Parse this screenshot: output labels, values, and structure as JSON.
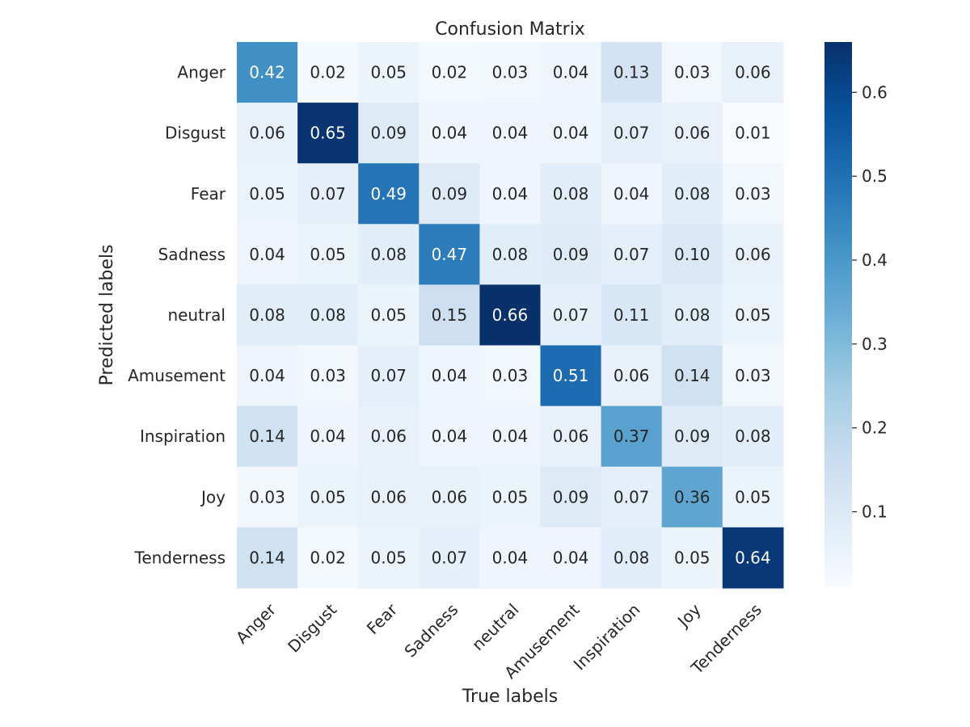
{
  "chart_data": {
    "type": "heatmap",
    "title": "Confusion Matrix",
    "xlabel": "True labels",
    "ylabel": "Predicted labels",
    "x_categories": [
      "Anger",
      "Disgust",
      "Fear",
      "Sadness",
      "neutral",
      "Amusement",
      "Inspiration",
      "Joy",
      "Tenderness"
    ],
    "y_categories": [
      "Anger",
      "Disgust",
      "Fear",
      "Sadness",
      "neutral",
      "Amusement",
      "Inspiration",
      "Joy",
      "Tenderness"
    ],
    "values": [
      [
        0.42,
        0.02,
        0.05,
        0.02,
        0.03,
        0.04,
        0.13,
        0.03,
        0.06
      ],
      [
        0.06,
        0.65,
        0.09,
        0.04,
        0.04,
        0.04,
        0.07,
        0.06,
        0.01
      ],
      [
        0.05,
        0.07,
        0.49,
        0.09,
        0.04,
        0.08,
        0.04,
        0.08,
        0.03
      ],
      [
        0.04,
        0.05,
        0.08,
        0.47,
        0.08,
        0.09,
        0.07,
        0.1,
        0.06
      ],
      [
        0.08,
        0.08,
        0.05,
        0.15,
        0.66,
        0.07,
        0.11,
        0.08,
        0.05
      ],
      [
        0.04,
        0.03,
        0.07,
        0.04,
        0.03,
        0.51,
        0.06,
        0.14,
        0.03
      ],
      [
        0.14,
        0.04,
        0.06,
        0.04,
        0.04,
        0.06,
        0.37,
        0.09,
        0.08
      ],
      [
        0.03,
        0.05,
        0.06,
        0.06,
        0.05,
        0.09,
        0.07,
        0.36,
        0.05
      ],
      [
        0.14,
        0.02,
        0.05,
        0.07,
        0.04,
        0.04,
        0.08,
        0.05,
        0.64
      ]
    ],
    "colormap": "Blues",
    "vmin": 0.01,
    "vmax": 0.66,
    "colorbar_ticks": [
      "0.1",
      "0.2",
      "0.3",
      "0.4",
      "0.5",
      "0.6"
    ],
    "annotation_format": "0.00",
    "legend": "colorbar right"
  }
}
